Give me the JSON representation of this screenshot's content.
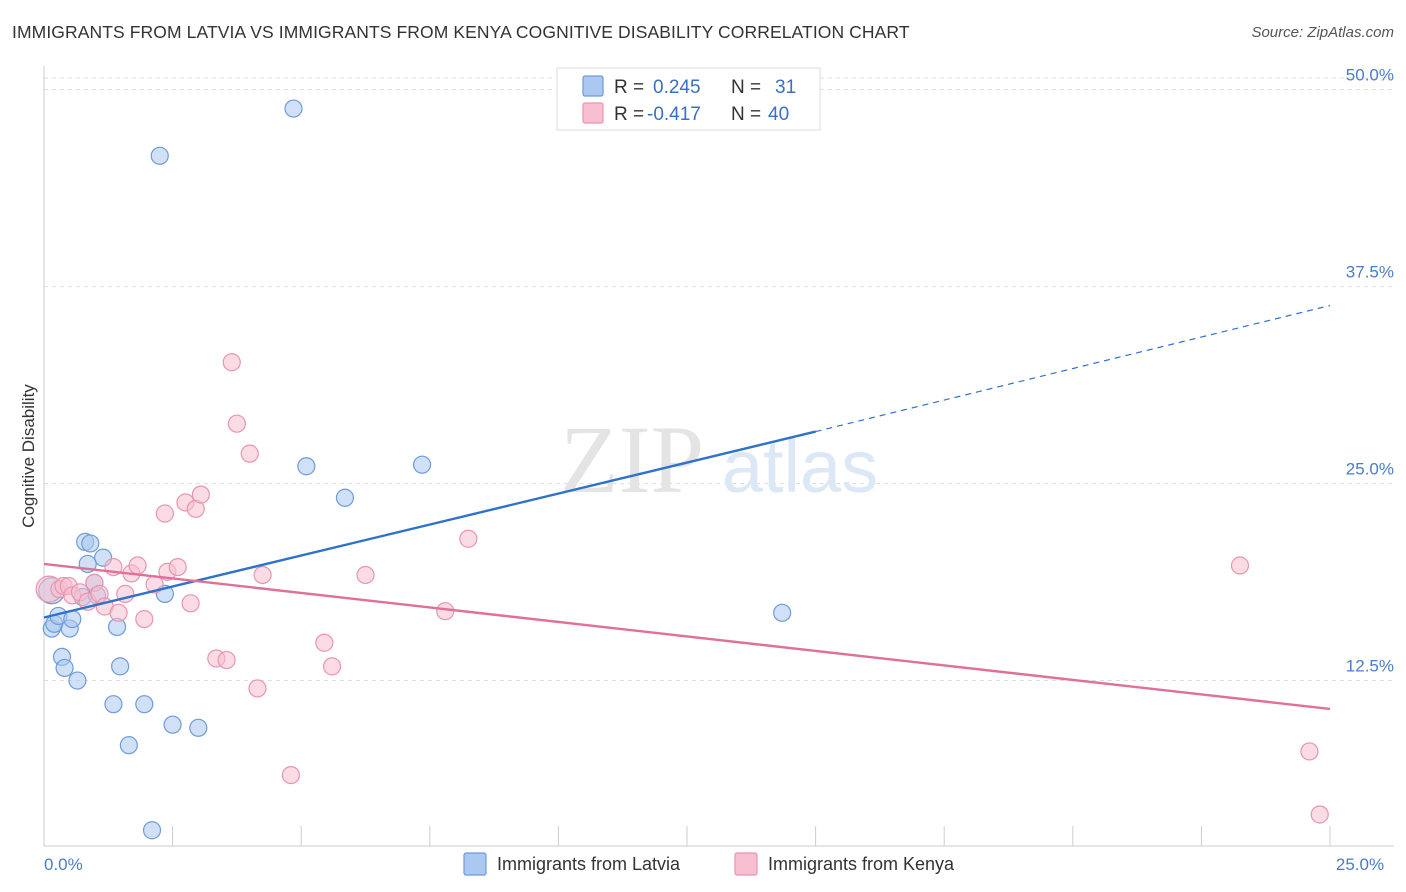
{
  "title": "IMMIGRANTS FROM LATVIA VS IMMIGRANTS FROM KENYA COGNITIVE DISABILITY CORRELATION CHART",
  "source": "Source: ZipAtlas.com",
  "watermark": {
    "zip": "ZIP",
    "atlas": "atlas"
  },
  "chart_data": {
    "type": "scatter",
    "ylabel": "Cognitive Disability",
    "xlim": [
      0,
      25
    ],
    "ylim": [
      2.0,
      51.5
    ],
    "x_tick_labels": [
      {
        "value": 0,
        "label": "0.0%"
      },
      {
        "value": 25,
        "label": "25.0%"
      }
    ],
    "y_ticks": [
      {
        "value": 12.5,
        "label": "12.5%"
      },
      {
        "value": 25.0,
        "label": "25.0%"
      },
      {
        "value": 37.5,
        "label": "37.5%"
      },
      {
        "value": 50.0,
        "label": "50.0%"
      }
    ],
    "grid": true,
    "legend_position": "top-center",
    "colors": {
      "latvia_fill": "#aac8f0",
      "latvia_stroke": "#6f9bd8",
      "latvia_line": "#2f72c9",
      "kenya_fill": "#f7bfd0",
      "kenya_stroke": "#e895b0",
      "kenya_line": "#e0709a",
      "tick_text": "#4a7cc9",
      "grid": "#dddddd"
    },
    "series": [
      {
        "name": "Immigrants from Latvia",
        "color_key": "latvia",
        "r_label": "R =",
        "r_value": "0.245",
        "n_label": "N =",
        "n_value": "31",
        "trend": {
          "x0": 0,
          "y0": 16.5,
          "x1": 15.0,
          "y1": 28.3,
          "dash_x1": 25,
          "dash_y1": 36.3
        },
        "points": [
          {
            "x": 0.15,
            "y": 18.2,
            "big": true
          },
          {
            "x": 0.15,
            "y": 15.8
          },
          {
            "x": 0.2,
            "y": 16.1
          },
          {
            "x": 0.28,
            "y": 16.6
          },
          {
            "x": 0.35,
            "y": 14.0
          },
          {
            "x": 0.4,
            "y": 13.3
          },
          {
            "x": 0.5,
            "y": 15.8
          },
          {
            "x": 0.55,
            "y": 16.4
          },
          {
            "x": 0.65,
            "y": 12.5
          },
          {
            "x": 0.75,
            "y": 17.8
          },
          {
            "x": 0.8,
            "y": 21.3
          },
          {
            "x": 0.85,
            "y": 19.9
          },
          {
            "x": 0.9,
            "y": 21.2
          },
          {
            "x": 0.98,
            "y": 18.7
          },
          {
            "x": 1.03,
            "y": 17.9
          },
          {
            "x": 1.15,
            "y": 20.3
          },
          {
            "x": 1.35,
            "y": 11.0
          },
          {
            "x": 1.42,
            "y": 15.9
          },
          {
            "x": 1.48,
            "y": 13.4
          },
          {
            "x": 1.65,
            "y": 8.4
          },
          {
            "x": 1.95,
            "y": 11.0
          },
          {
            "x": 2.1,
            "y": 3.0
          },
          {
            "x": 2.25,
            "y": 45.8
          },
          {
            "x": 2.35,
            "y": 18.0
          },
          {
            "x": 2.5,
            "y": 9.7
          },
          {
            "x": 3.0,
            "y": 9.5
          },
          {
            "x": 4.85,
            "y": 48.8
          },
          {
            "x": 5.1,
            "y": 26.1
          },
          {
            "x": 5.85,
            "y": 24.1
          },
          {
            "x": 7.35,
            "y": 26.2
          },
          {
            "x": 14.35,
            "y": 16.8
          }
        ]
      },
      {
        "name": "Immigrants from Kenya",
        "color_key": "kenya",
        "r_label": "R =",
        "r_value": "-0.417",
        "n_label": "N =",
        "n_value": "40",
        "trend": {
          "x0": 0,
          "y0": 19.9,
          "x1": 25,
          "y1": 10.7
        },
        "points": [
          {
            "x": 0.1,
            "y": 18.3,
            "big": true
          },
          {
            "x": 0.3,
            "y": 18.3
          },
          {
            "x": 0.38,
            "y": 18.5
          },
          {
            "x": 0.48,
            "y": 18.5
          },
          {
            "x": 0.55,
            "y": 17.9
          },
          {
            "x": 0.7,
            "y": 18.1
          },
          {
            "x": 0.85,
            "y": 17.5
          },
          {
            "x": 0.98,
            "y": 18.7
          },
          {
            "x": 1.08,
            "y": 18.0
          },
          {
            "x": 1.18,
            "y": 17.2
          },
          {
            "x": 1.35,
            "y": 19.7
          },
          {
            "x": 1.45,
            "y": 16.8
          },
          {
            "x": 1.58,
            "y": 18.0
          },
          {
            "x": 1.7,
            "y": 19.3
          },
          {
            "x": 1.82,
            "y": 19.8
          },
          {
            "x": 1.95,
            "y": 16.4
          },
          {
            "x": 2.15,
            "y": 18.6
          },
          {
            "x": 2.35,
            "y": 23.1
          },
          {
            "x": 2.4,
            "y": 19.4
          },
          {
            "x": 2.6,
            "y": 19.7
          },
          {
            "x": 2.75,
            "y": 23.8
          },
          {
            "x": 2.85,
            "y": 17.4
          },
          {
            "x": 2.95,
            "y": 23.4
          },
          {
            "x": 3.05,
            "y": 24.3
          },
          {
            "x": 3.35,
            "y": 13.9
          },
          {
            "x": 3.55,
            "y": 13.8
          },
          {
            "x": 3.65,
            "y": 32.7
          },
          {
            "x": 3.75,
            "y": 28.8
          },
          {
            "x": 4.0,
            "y": 26.9
          },
          {
            "x": 4.15,
            "y": 12.0
          },
          {
            "x": 4.25,
            "y": 19.2
          },
          {
            "x": 4.8,
            "y": 6.5
          },
          {
            "x": 5.45,
            "y": 14.9
          },
          {
            "x": 5.6,
            "y": 13.4
          },
          {
            "x": 6.25,
            "y": 19.2
          },
          {
            "x": 7.8,
            "y": 16.9
          },
          {
            "x": 8.25,
            "y": 21.5
          },
          {
            "x": 23.25,
            "y": 19.8
          },
          {
            "x": 24.6,
            "y": 8.0
          },
          {
            "x": 24.8,
            "y": 4.0
          }
        ]
      }
    ]
  }
}
